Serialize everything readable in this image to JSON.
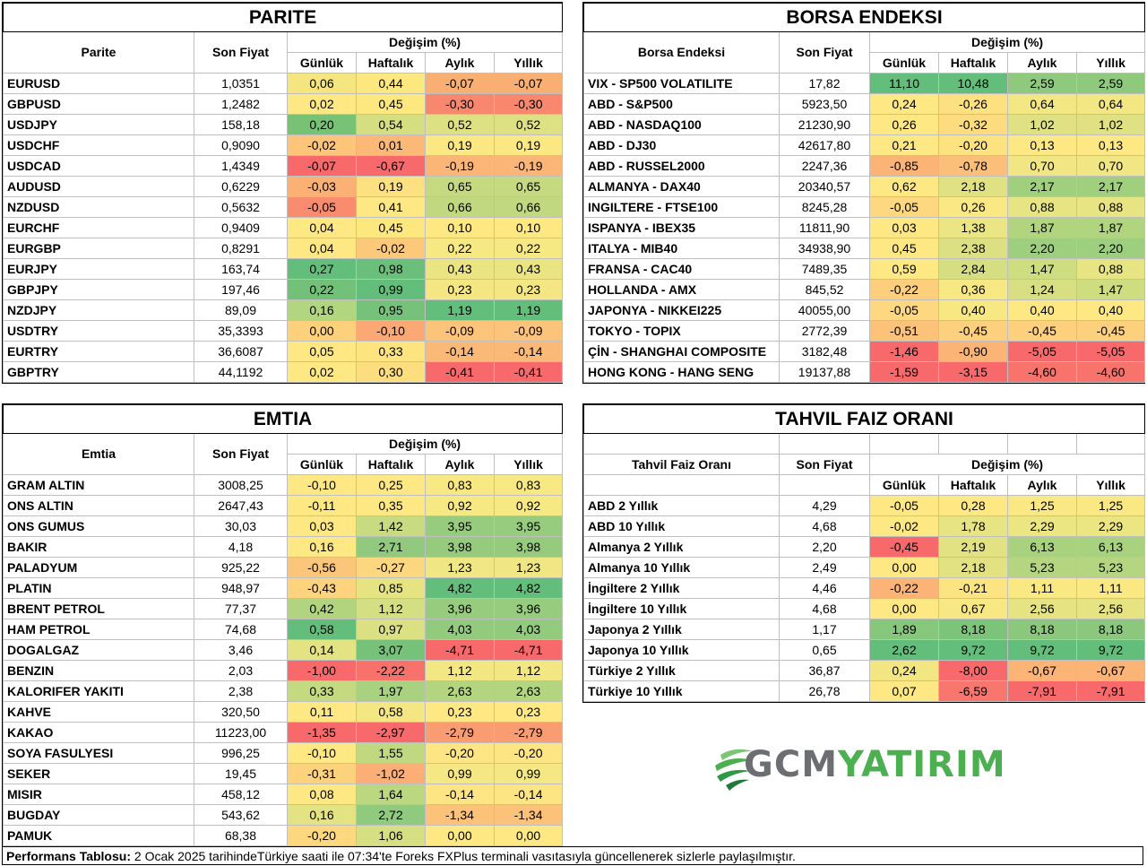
{
  "parite": {
    "title": "PARITE",
    "col_name": "Parite",
    "col_price": "Son Fiyat",
    "col_change": "Değişim (%)",
    "cols": [
      "Günlük",
      "Haftalık",
      "Aylık",
      "Yıllık"
    ],
    "rows": [
      {
        "name": "EURUSD",
        "price": "1,0351",
        "vals": [
          "0,06",
          "0,44",
          "-0,07",
          "-0,07"
        ],
        "colors": [
          "#f4e57e",
          "#fde880",
          "#f9ae72",
          "#f9ae72"
        ]
      },
      {
        "name": "GBPUSD",
        "price": "1,2482",
        "vals": [
          "0,02",
          "0,45",
          "-0,30",
          "-0,30"
        ],
        "colors": [
          "#fee883",
          "#fde880",
          "#f7876d",
          "#f7876d"
        ]
      },
      {
        "name": "USDJPY",
        "price": "158,18",
        "vals": [
          "0,20",
          "0,54",
          "0,52",
          "0,52"
        ],
        "colors": [
          "#78c276",
          "#d5de81",
          "#dde083",
          "#dde083"
        ]
      },
      {
        "name": "USDCHF",
        "price": "0,9090",
        "vals": [
          "-0,02",
          "0,01",
          "0,19",
          "0,19"
        ],
        "colors": [
          "#fcc579",
          "#fcb877",
          "#fbe882",
          "#fbe882"
        ]
      },
      {
        "name": "USDCAD",
        "price": "1,4349",
        "vals": [
          "-0,07",
          "-0,67",
          "-0,19",
          "-0,19"
        ],
        "colors": [
          "#f8696b",
          "#f8696b",
          "#fbb576",
          "#fbb576"
        ]
      },
      {
        "name": "AUDUSD",
        "price": "0,6229",
        "vals": [
          "-0,03",
          "0,19",
          "0,65",
          "0,65"
        ],
        "colors": [
          "#fbb174",
          "#fde07f",
          "#c4d980",
          "#c4d980"
        ]
      },
      {
        "name": "NZDUSD",
        "price": "0,5632",
        "vals": [
          "-0,05",
          "0,41",
          "0,66",
          "0,66"
        ],
        "colors": [
          "#f98b6e",
          "#fde883",
          "#c2d880",
          "#c2d880"
        ]
      },
      {
        "name": "EURCHF",
        "price": "0,9409",
        "vals": [
          "0,04",
          "0,45",
          "0,10",
          "0,10"
        ],
        "colors": [
          "#fee883",
          "#fde880",
          "#fde882",
          "#fde882"
        ]
      },
      {
        "name": "EURGBP",
        "price": "0,8291",
        "vals": [
          "0,04",
          "-0,02",
          "0,22",
          "0,22"
        ],
        "colors": [
          "#fee883",
          "#fcc87a",
          "#f6e883",
          "#f6e883"
        ]
      },
      {
        "name": "EURJPY",
        "price": "163,74",
        "vals": [
          "0,27",
          "0,98",
          "0,43",
          "0,43"
        ],
        "colors": [
          "#63be7b",
          "#6abf7b",
          "#ebe482",
          "#ebe482"
        ]
      },
      {
        "name": "GBPJPY",
        "price": "197,46",
        "vals": [
          "0,22",
          "0,99",
          "0,23",
          "0,23"
        ],
        "colors": [
          "#73c178",
          "#63be7b",
          "#f4e783",
          "#f4e783"
        ]
      },
      {
        "name": "NZDJPY",
        "price": "89,09",
        "vals": [
          "0,16",
          "0,95",
          "1,19",
          "1,19"
        ],
        "colors": [
          "#b1d67f",
          "#76c27a",
          "#63be7b",
          "#63be7b"
        ]
      },
      {
        "name": "USDTRY",
        "price": "35,3393",
        "vals": [
          "0,00",
          "-0,10",
          "-0,09",
          "-0,09"
        ],
        "colors": [
          "#fdd17c",
          "#fba875",
          "#fcc47a",
          "#fcc47a"
        ]
      },
      {
        "name": "EURTRY",
        "price": "36,6087",
        "vals": [
          "0,05",
          "0,33",
          "-0,14",
          "-0,14"
        ],
        "colors": [
          "#fde883",
          "#fde47f",
          "#fbb977",
          "#fbb977"
        ]
      },
      {
        "name": "GBPTRY",
        "price": "44,1192",
        "vals": [
          "0,02",
          "0,30",
          "-0,41",
          "-0,41"
        ],
        "colors": [
          "#fee883",
          "#fdde7f",
          "#f8696b",
          "#f8696b"
        ]
      }
    ]
  },
  "borsa": {
    "title": "BORSA ENDEKSI",
    "col_name": "Borsa Endeksi",
    "col_price": "Son Fiyat",
    "col_change": "Değişim (%)",
    "cols": [
      "Günlük",
      "Haftalık",
      "Aylık",
      "Yıllık"
    ],
    "rows": [
      {
        "name": "VIX  - SP500 VOLATILITE",
        "price": "17,82",
        "vals": [
          "11,10",
          "10,48",
          "2,59",
          "2,59"
        ],
        "colors": [
          "#63be7b",
          "#63be7b",
          "#8ec97e",
          "#8ec97e"
        ]
      },
      {
        "name": "ABD - S&P500",
        "price": "5923,50",
        "vals": [
          "0,24",
          "-0,26",
          "0,64",
          "0,64"
        ],
        "colors": [
          "#fee883",
          "#fde07f",
          "#f3e783",
          "#f3e783"
        ]
      },
      {
        "name": "ABD - NASDAQ100",
        "price": "21230,90",
        "vals": [
          "0,26",
          "-0,32",
          "1,02",
          "1,02"
        ],
        "colors": [
          "#fee883",
          "#fcdc7e",
          "#dfe183",
          "#dfe183"
        ]
      },
      {
        "name": "ABD - DJ30",
        "price": "42617,80",
        "vals": [
          "0,21",
          "-0,20",
          "0,13",
          "0,13"
        ],
        "colors": [
          "#fee883",
          "#fde380",
          "#fee883",
          "#fee883"
        ]
      },
      {
        "name": "ABD - RUSSEL2000",
        "price": "2247,36",
        "vals": [
          "-0,85",
          "-0,78",
          "0,70",
          "0,70"
        ],
        "colors": [
          "#fbb376",
          "#fbbf79",
          "#f0e683",
          "#f0e683"
        ]
      },
      {
        "name": "ALMANYA - DAX40",
        "price": "20340,57",
        "vals": [
          "0,62",
          "2,18",
          "2,17",
          "2,17"
        ],
        "colors": [
          "#fee883",
          "#dfe183",
          "#a0cf7e",
          "#a0cf7e"
        ]
      },
      {
        "name": "INGILTERE - FTSE100",
        "price": "8245,28",
        "vals": [
          "-0,05",
          "0,26",
          "0,88",
          "0,88"
        ],
        "colors": [
          "#fed880",
          "#f9e883",
          "#e7e483",
          "#e7e483"
        ]
      },
      {
        "name": "ISPANYA - IBEX35",
        "price": "11811,90",
        "vals": [
          "0,03",
          "1,38",
          "1,87",
          "1,87"
        ],
        "colors": [
          "#fee883",
          "#ece583",
          "#b1d47f",
          "#b1d47f"
        ]
      },
      {
        "name": "ITALYA - MIB40",
        "price": "34938,90",
        "vals": [
          "0,45",
          "2,38",
          "2,20",
          "2,20"
        ],
        "colors": [
          "#fee883",
          "#dce083",
          "#9ecf7e",
          "#9ecf7e"
        ]
      },
      {
        "name": "FRANSA - CAC40",
        "price": "7489,35",
        "vals": [
          "0,59",
          "2,84",
          "1,47",
          "0,88"
        ],
        "colors": [
          "#fee883",
          "#d5de81",
          "#cfdd81",
          "#e7e483"
        ]
      },
      {
        "name": "HOLLANDA - AMX",
        "price": "845,52",
        "vals": [
          "-0,22",
          "0,36",
          "1,24",
          "1,47"
        ],
        "colors": [
          "#fdcf7c",
          "#f8e883",
          "#d7df82",
          "#cfdd81"
        ]
      },
      {
        "name": "JAPONYA - NIKKEI225",
        "price": "40055,00",
        "vals": [
          "-0,05",
          "0,40",
          "0,40",
          "0,40"
        ],
        "colors": [
          "#fed880",
          "#f8e883",
          "#fde883",
          "#fde883"
        ]
      },
      {
        "name": "TOKYO - TOPIX",
        "price": "2772,39",
        "vals": [
          "-0,51",
          "-0,45",
          "-0,45",
          "-0,45"
        ],
        "colors": [
          "#fcc27a",
          "#fcd07c",
          "#fcd07c",
          "#fcd07c"
        ]
      },
      {
        "name": "ÇİN - SHANGHAI COMPOSITE",
        "price": "3182,48",
        "vals": [
          "-1,46",
          "-0,90",
          "-5,05",
          "-5,05"
        ],
        "colors": [
          "#f8696b",
          "#fbb376",
          "#f8696b",
          "#f8696b"
        ]
      },
      {
        "name": "HONG KONG - HANG SENG",
        "price": "19137,88",
        "vals": [
          "-1,59",
          "-3,15",
          "-4,60",
          "-4,60"
        ],
        "colors": [
          "#f8696b",
          "#f8696b",
          "#f8736c",
          "#f8736c"
        ]
      }
    ]
  },
  "emtia": {
    "title": "EMTIA",
    "col_name": "Emtia",
    "col_price": "Son Fiyat",
    "col_change": "Değişim (%)",
    "cols": [
      "Günlük",
      "Haftalık",
      "Aylık",
      "Yıllık"
    ],
    "rows": [
      {
        "name": "GRAM ALTIN",
        "price": "3008,25",
        "vals": [
          "-0,10",
          "0,25",
          "0,83",
          "0,83"
        ],
        "colors": [
          "#fde883",
          "#fde883",
          "#f8e883",
          "#f8e883"
        ]
      },
      {
        "name": "ONS ALTIN",
        "price": "2647,43",
        "vals": [
          "-0,11",
          "0,35",
          "0,92",
          "0,92"
        ],
        "colors": [
          "#fde883",
          "#fde883",
          "#f6e883",
          "#f6e883"
        ]
      },
      {
        "name": "ONS GUMUS",
        "price": "30,03",
        "vals": [
          "0,03",
          "1,42",
          "3,95",
          "3,95"
        ],
        "colors": [
          "#fee883",
          "#c9db81",
          "#97cc7e",
          "#97cc7e"
        ]
      },
      {
        "name": "BAKIR",
        "price": "4,18",
        "vals": [
          "0,16",
          "2,71",
          "3,98",
          "3,98"
        ],
        "colors": [
          "#fde883",
          "#91ca7e",
          "#96cb7e",
          "#96cb7e"
        ]
      },
      {
        "name": "PALADYUM",
        "price": "925,22",
        "vals": [
          "-0,56",
          "-0,27",
          "1,23",
          "1,23"
        ],
        "colors": [
          "#fcc67a",
          "#fdd77f",
          "#f0e683",
          "#f0e683"
        ]
      },
      {
        "name": "PLATIN",
        "price": "948,97",
        "vals": [
          "-0,43",
          "0,85",
          "4,82",
          "4,82"
        ],
        "colors": [
          "#fdd47d",
          "#e5e382",
          "#63be7b",
          "#63be7b"
        ]
      },
      {
        "name": "BRENT PETROL",
        "price": "77,37",
        "vals": [
          "0,42",
          "1,12",
          "3,96",
          "3,96"
        ],
        "colors": [
          "#b2d47f",
          "#d4de82",
          "#97cc7e",
          "#97cc7e"
        ]
      },
      {
        "name": "HAM PETROL",
        "price": "74,68",
        "vals": [
          "0,58",
          "0,97",
          "4,03",
          "4,03"
        ],
        "colors": [
          "#63be7b",
          "#dbe083",
          "#93cb7e",
          "#93cb7e"
        ]
      },
      {
        "name": "DOGALGAZ",
        "price": "3,46",
        "vals": [
          "0,14",
          "3,07",
          "-4,71",
          "-4,71"
        ],
        "colors": [
          "#e4e383",
          "#77c27a",
          "#f8696b",
          "#f8696b"
        ]
      },
      {
        "name": "BENZIN",
        "price": "2,03",
        "vals": [
          "-1,00",
          "-2,22",
          "1,12",
          "1,12"
        ],
        "colors": [
          "#f8696b",
          "#f8726c",
          "#f3e783",
          "#f3e783"
        ]
      },
      {
        "name": "KALORIFER YAKITI",
        "price": "2,38",
        "vals": [
          "0,33",
          "1,97",
          "2,63",
          "2,63"
        ],
        "colors": [
          "#c4d980",
          "#a8d27f",
          "#b4d57f",
          "#b4d57f"
        ]
      },
      {
        "name": "KAHVE",
        "price": "320,50",
        "vals": [
          "0,11",
          "0,58",
          "0,23",
          "0,23"
        ],
        "colors": [
          "#fde883",
          "#f4e683",
          "#fde883",
          "#fde883"
        ]
      },
      {
        "name": "KAKAO",
        "price": "11223,00",
        "vals": [
          "-1,35",
          "-2,97",
          "-2,79",
          "-2,79"
        ],
        "colors": [
          "#f8696b",
          "#f8696b",
          "#fa9c72",
          "#fa9c72"
        ]
      },
      {
        "name": "SOYA FASULYESI",
        "price": "996,25",
        "vals": [
          "-0,10",
          "1,55",
          "-0,20",
          "-0,20"
        ],
        "colors": [
          "#fde883",
          "#c0d880",
          "#fde583",
          "#fde583"
        ]
      },
      {
        "name": "SEKER",
        "price": "19,45",
        "vals": [
          "-0,31",
          "-1,02",
          "0,99",
          "0,99"
        ],
        "colors": [
          "#fdd27d",
          "#fbae75",
          "#f5e783",
          "#f5e783"
        ]
      },
      {
        "name": "MISIR",
        "price": "458,12",
        "vals": [
          "0,08",
          "1,64",
          "-0,14",
          "-0,14"
        ],
        "colors": [
          "#fde883",
          "#bbd77f",
          "#fde583",
          "#fde583"
        ]
      },
      {
        "name": "BUGDAY",
        "price": "543,62",
        "vals": [
          "0,16",
          "2,72",
          "-1,34",
          "-1,34"
        ],
        "colors": [
          "#e4e383",
          "#90ca7e",
          "#fcc27a",
          "#fcc27a"
        ]
      },
      {
        "name": "PAMUK",
        "price": "68,38",
        "vals": [
          "-0,20",
          "1,06",
          "0,00",
          "0,00"
        ],
        "colors": [
          "#fdd87f",
          "#d6df82",
          "#fde883",
          "#fde883"
        ]
      }
    ]
  },
  "tahvil": {
    "title": "TAHVIL FAIZ ORANI",
    "col_name": "Tahvil Faiz Oranı",
    "col_price": "Son Fiyat",
    "col_change": "Değişim (%)",
    "cols": [
      "Günlük",
      "Haftalık",
      "Aylık",
      "Yıllık"
    ],
    "rows": [
      {
        "name": "ABD 2 Yıllık",
        "price": "4,29",
        "vals": [
          "-0,05",
          "0,28",
          "1,25",
          "1,25"
        ],
        "colors": [
          "#fde883",
          "#fde883",
          "#f9e883",
          "#f9e883"
        ]
      },
      {
        "name": "ABD 10 Yıllık",
        "price": "4,68",
        "vals": [
          "-0,02",
          "1,78",
          "2,29",
          "2,29"
        ],
        "colors": [
          "#fde883",
          "#e7e483",
          "#ebe582",
          "#ebe582"
        ]
      },
      {
        "name": "Almanya 2 Yıllık",
        "price": "2,20",
        "vals": [
          "-0,45",
          "2,19",
          "6,13",
          "6,13"
        ],
        "colors": [
          "#f8696b",
          "#e2e283",
          "#a9d27f",
          "#a9d27f"
        ]
      },
      {
        "name": "Almanya 10 Yıllık",
        "price": "2,49",
        "vals": [
          "0,00",
          "2,18",
          "5,23",
          "5,23"
        ],
        "colors": [
          "#fde883",
          "#e2e283",
          "#b6d580",
          "#b6d580"
        ]
      },
      {
        "name": "İngiltere 2 Yıllık",
        "price": "4,46",
        "vals": [
          "-0,22",
          "-0,21",
          "1,11",
          "1,11"
        ],
        "colors": [
          "#fbb476",
          "#fde483",
          "#fae883",
          "#fae883"
        ]
      },
      {
        "name": "İngiltere 10 Yıllık",
        "price": "4,68",
        "vals": [
          "0,00",
          "0,67",
          "2,56",
          "2,56"
        ],
        "colors": [
          "#fde883",
          "#f8e883",
          "#e6e383",
          "#e6e383"
        ]
      },
      {
        "name": "Japonya 2 Yıllık",
        "price": "1,17",
        "vals": [
          "1,89",
          "8,18",
          "8,18",
          "8,18"
        ],
        "colors": [
          "#86c77c",
          "#7dc47b",
          "#8bc87d",
          "#8bc87d"
        ]
      },
      {
        "name": "Japonya 10 Yıllık",
        "price": "0,65",
        "vals": [
          "2,62",
          "9,72",
          "9,72",
          "9,72"
        ],
        "colors": [
          "#63be7b",
          "#63be7b",
          "#63be7b",
          "#63be7b"
        ]
      },
      {
        "name": "Türkiye 2 Yıllık",
        "price": "36,87",
        "vals": [
          "0,24",
          "-8,00",
          "-0,67",
          "-0,67"
        ],
        "colors": [
          "#f2e683",
          "#f8696b",
          "#fbb376",
          "#fbb376"
        ]
      },
      {
        "name": "Türkiye 10 Yıllık",
        "price": "26,78",
        "vals": [
          "0,07",
          "-6,59",
          "-7,91",
          "-7,91"
        ],
        "colors": [
          "#fde883",
          "#f8766d",
          "#f8696b",
          "#f8696b"
        ]
      }
    ]
  },
  "footer": {
    "label": "Performans Tablosu:",
    "text": " 2 Ocak 2025 tarihindeTürkiye saati ile 07:34'te Foreks FXPlus terminali vasıtasıyla güncellenerek sizlerle paylaşılmıştır."
  },
  "logo": {
    "gcm": "GCM",
    "yatirim": "YATIRIM",
    "gcm_color": "#6d6e71",
    "yatirim_color": "#4caf50"
  }
}
